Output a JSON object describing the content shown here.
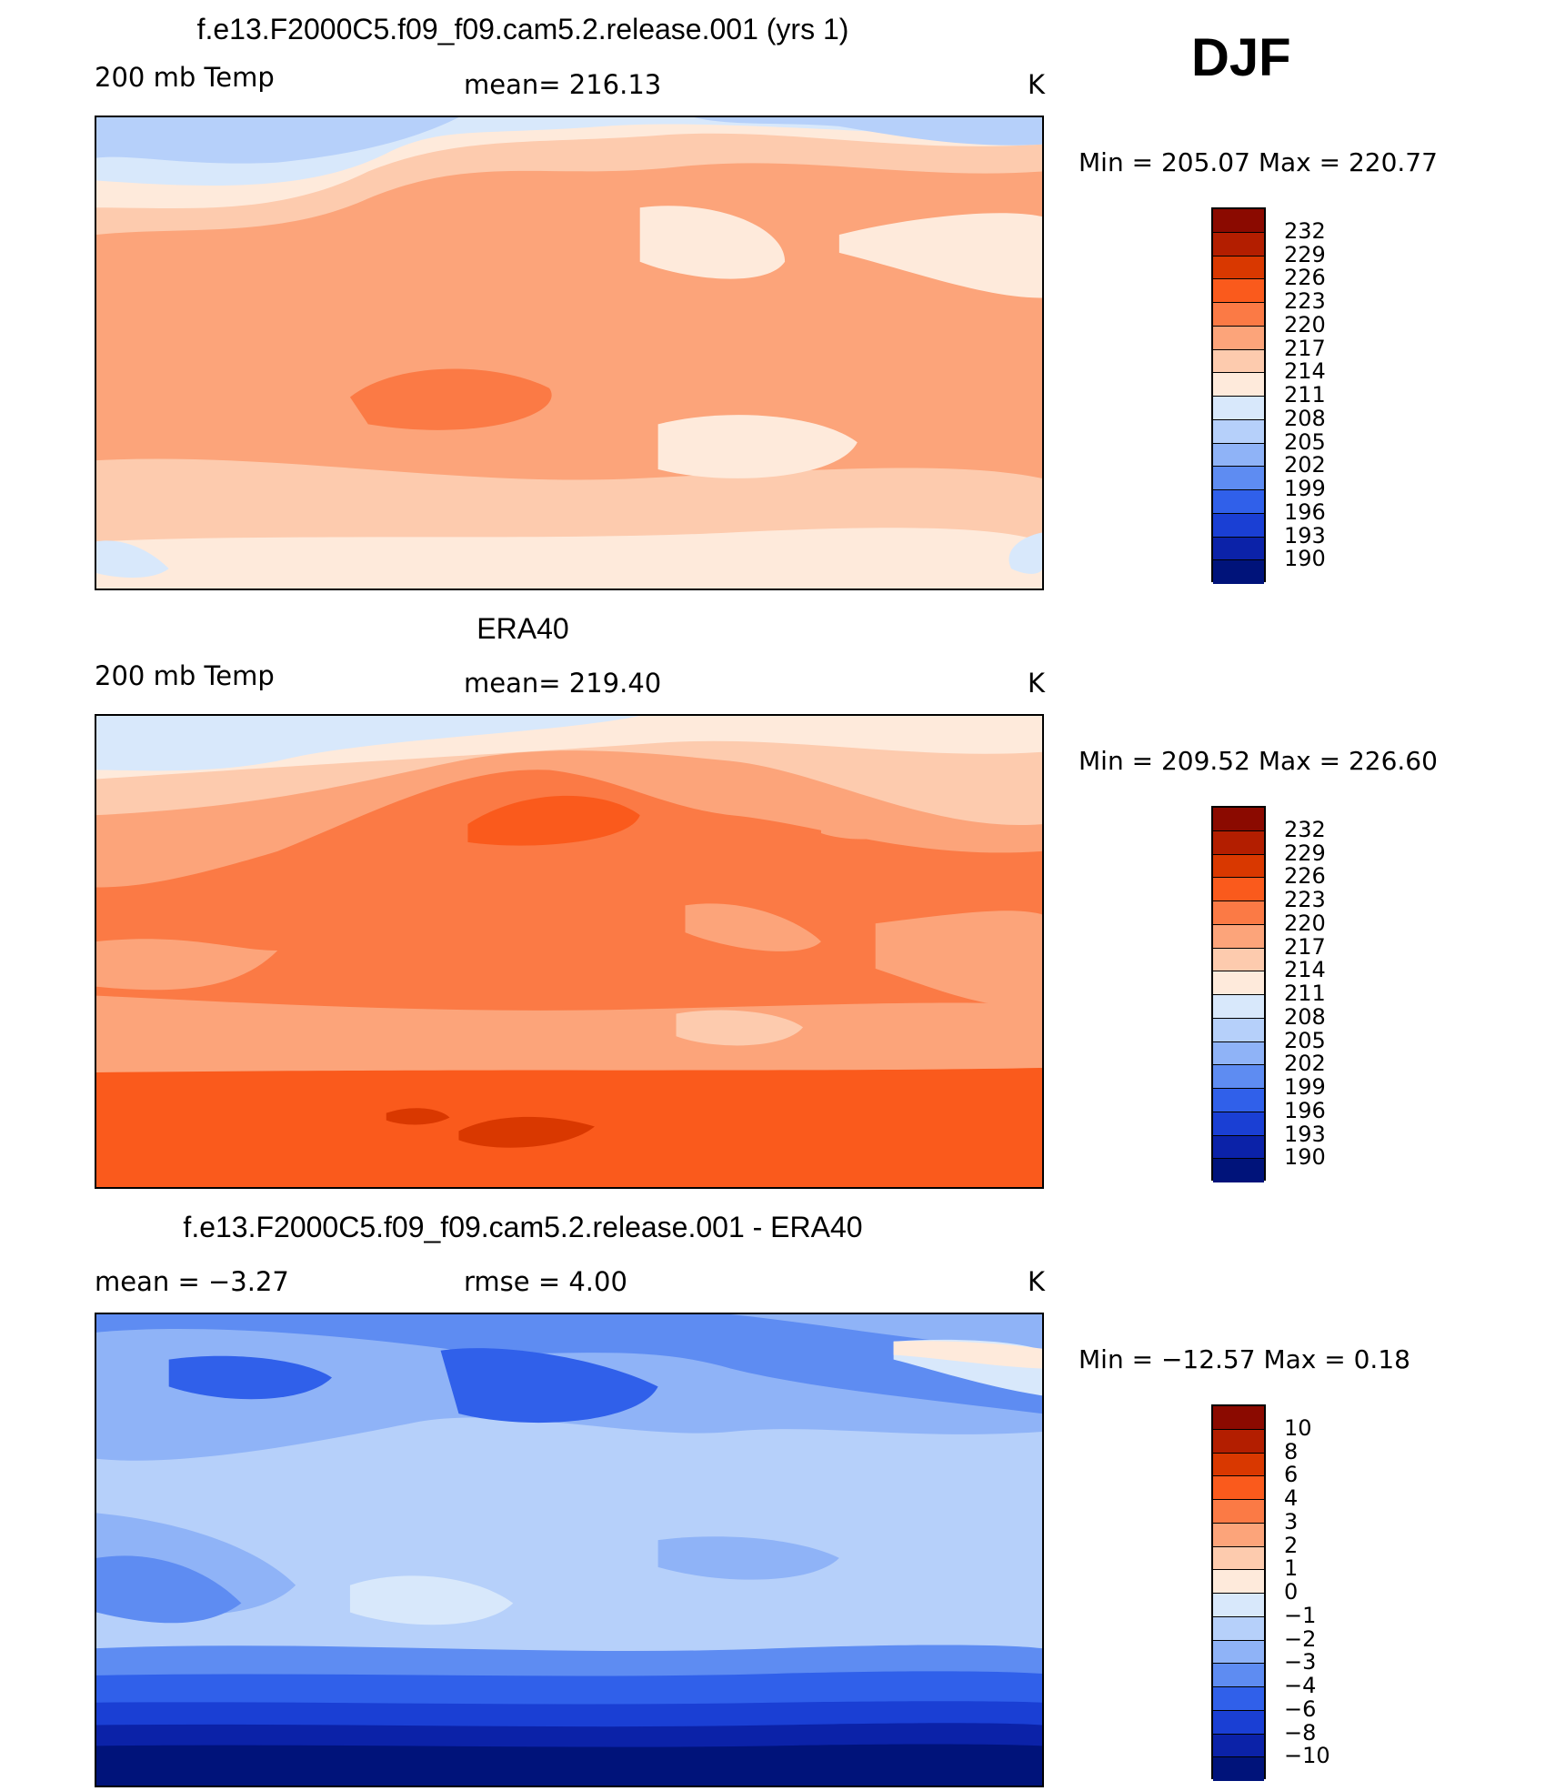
{
  "season": "DJF",
  "panels": [
    {
      "title": "f.e13.F2000C5.f09_f09.cam5.2.release.001 (yrs 1)",
      "left_label": "200 mb Temp",
      "center_label": "mean=  216.13",
      "units": "K",
      "min_max": "Min  =  205.07  Max  =  220.77",
      "palette": "abs"
    },
    {
      "title": "ERA40",
      "left_label": "200 mb Temp",
      "center_label": "mean=  219.40",
      "units": "K",
      "min_max": "Min  =  209.52  Max  =  226.60",
      "palette": "abs"
    },
    {
      "title": "f.e13.F2000C5.f09_f09.cam5.2.release.001 - ERA40",
      "left_label": "mean  =    −3.27",
      "center_label": "rmse  =     4.00",
      "units": "K",
      "min_max": "Min  =  −12.57  Max  =      0.18",
      "palette": "diff"
    }
  ],
  "colorbars": {
    "abs": {
      "labels": [
        "232",
        "229",
        "226",
        "223",
        "220",
        "217",
        "214",
        "211",
        "208",
        "205",
        "202",
        "199",
        "196",
        "193",
        "190"
      ],
      "colors": [
        "#8b0a00",
        "#b31e00",
        "#d93800",
        "#fa5a1c",
        "#fb7a45",
        "#fca47a",
        "#fdcbae",
        "#feeadb",
        "#d8e8fb",
        "#b6d0fa",
        "#8fb3f7",
        "#5e8cf2",
        "#3060ea",
        "#1a3fd4",
        "#0b22a8",
        "#00137a"
      ]
    },
    "diff": {
      "labels": [
        "10",
        "8",
        "6",
        "4",
        "3",
        "2",
        "1",
        "0",
        "−1",
        "−2",
        "−3",
        "−4",
        "−6",
        "−8",
        "−10"
      ],
      "colors": [
        "#8b0a00",
        "#b31e00",
        "#d93800",
        "#fa5a1c",
        "#fb7a45",
        "#fca47a",
        "#fdcbae",
        "#feeadb",
        "#d8e8fb",
        "#b6d0fa",
        "#8fb3f7",
        "#5e8cf2",
        "#3060ea",
        "#1a3fd4",
        "#0b22a8",
        "#00137a"
      ]
    }
  },
  "chart_data": [
    {
      "type": "heatmap",
      "title": "f.e13.F2000C5.f09_f09.cam5.2.release.001 (yrs 1)",
      "variable": "200 mb Temp",
      "units": "K",
      "mean": 216.13,
      "min": 205.07,
      "max": 220.77,
      "levels": [
        190,
        193,
        196,
        199,
        202,
        205,
        208,
        211,
        214,
        217,
        220,
        223,
        226,
        229,
        232
      ]
    },
    {
      "type": "heatmap",
      "title": "ERA40",
      "variable": "200 mb Temp",
      "units": "K",
      "mean": 219.4,
      "min": 209.52,
      "max": 226.6,
      "levels": [
        190,
        193,
        196,
        199,
        202,
        205,
        208,
        211,
        214,
        217,
        220,
        223,
        226,
        229,
        232
      ]
    },
    {
      "type": "heatmap",
      "title": "f.e13.F2000C5.f09_f09.cam5.2.release.001 - ERA40",
      "units": "K",
      "mean": -3.27,
      "rmse": 4.0,
      "min": -12.57,
      "max": 0.18,
      "levels": [
        -10,
        -8,
        -6,
        -4,
        -3,
        -2,
        -1,
        0,
        1,
        2,
        3,
        4,
        6,
        8,
        10
      ]
    }
  ]
}
